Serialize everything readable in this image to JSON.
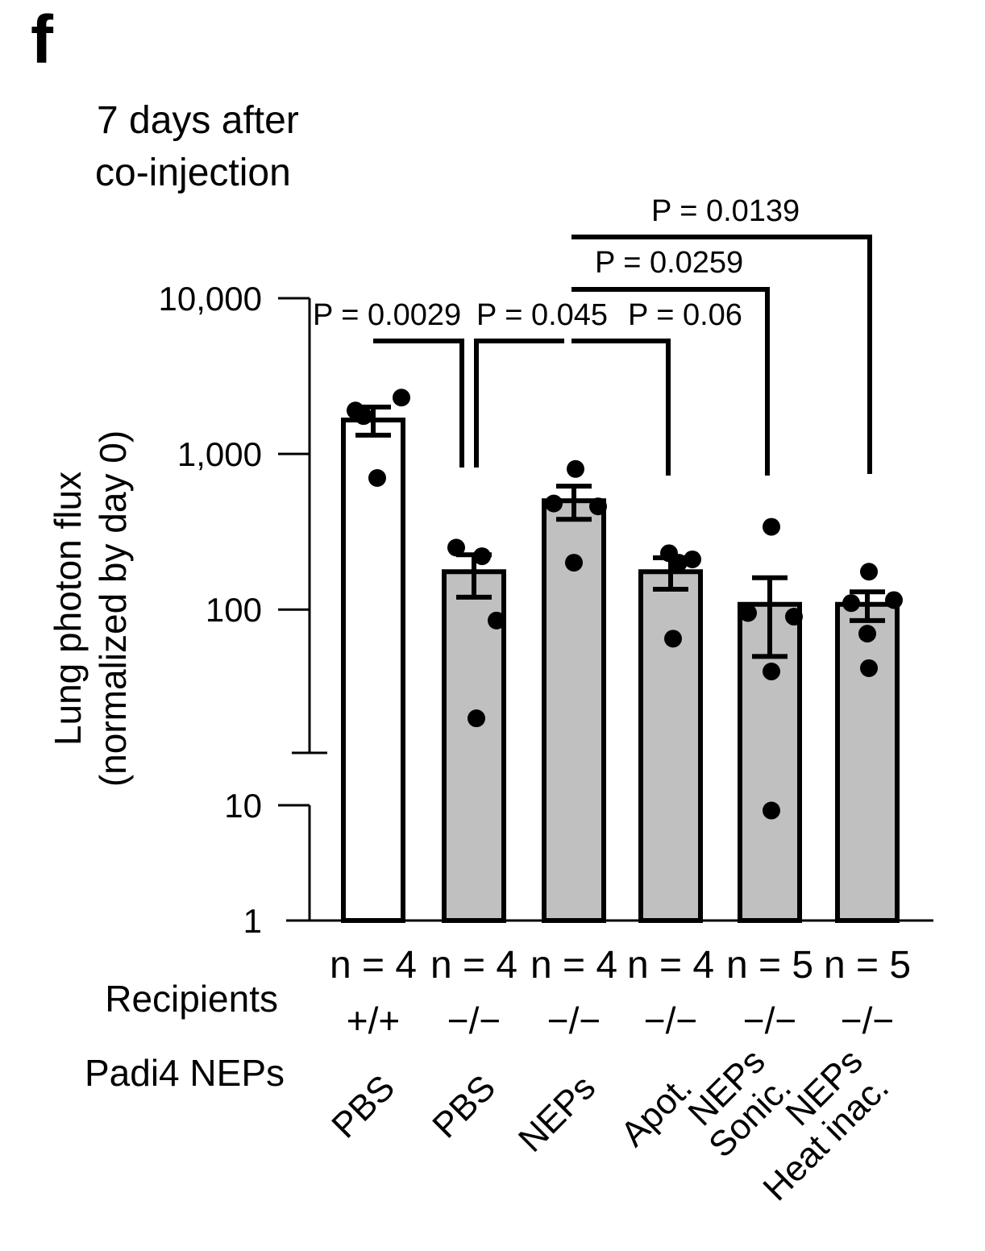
{
  "panel_letter": "f",
  "title_lines": [
    "7 days after",
    "co-injection"
  ],
  "row_labels": {
    "recipients": "Recipients",
    "neps": "Padi4 NEPs"
  },
  "chart_data": {
    "type": "bar",
    "ylabel_lines": [
      "Lung photon flux",
      "(normalized by day 0)"
    ],
    "xlabel": "",
    "y_scale": "log",
    "y_axis_break": true,
    "ylim": [
      1,
      10000
    ],
    "y_ticks": [
      {
        "value": 10000,
        "label": "10,000"
      },
      {
        "value": 1000,
        "label": "1,000"
      },
      {
        "value": 100,
        "label": "100"
      },
      {
        "value": 10,
        "label": "10"
      },
      {
        "value": 1,
        "label": "1"
      }
    ],
    "grid": false,
    "legend": "none",
    "colors": {
      "first_bar": "#ffffff",
      "other_bars": "#c0c0c0",
      "stroke": "#000000"
    },
    "groups": [
      {
        "n_label": "n = 4",
        "recipient": "+/+",
        "treatment_lines": [
          "PBS"
        ],
        "mean": 1650,
        "sem": [
          1320,
          2000
        ],
        "points": [
          1900,
          1750,
          2300,
          700
        ]
      },
      {
        "n_label": "n = 4",
        "recipient": "−/−",
        "treatment_lines": [
          "PBS"
        ],
        "mean": 175,
        "sem": [
          120,
          225
        ],
        "points": [
          250,
          220,
          85,
          20
        ]
      },
      {
        "n_label": "n = 4",
        "recipient": "−/−",
        "treatment_lines": [
          "NEPs"
        ],
        "mean": 500,
        "sem": [
          380,
          620
        ],
        "points": [
          800,
          480,
          460,
          200
        ]
      },
      {
        "n_label": "n = 4",
        "recipient": "−/−",
        "treatment_lines": [
          "Apot."
        ],
        "mean": 175,
        "sem": [
          135,
          215
        ],
        "points": [
          230,
          200,
          210,
          65
        ]
      },
      {
        "n_label": "n = 5",
        "recipient": "−/−",
        "treatment_lines": [
          "NEPs",
          "Sonic."
        ],
        "mean": 108,
        "sem": [
          50,
          160
        ],
        "points": [
          340,
          95,
          90,
          40,
          9
        ]
      },
      {
        "n_label": "n = 5",
        "recipient": "−/−",
        "treatment_lines": [
          "NEPs",
          "Heat inac."
        ],
        "mean": 108,
        "sem": [
          85,
          130
        ],
        "points": [
          175,
          110,
          115,
          70,
          42
        ]
      }
    ],
    "comparisons": [
      {
        "label": "P = 0.0029",
        "groups": [
          0,
          1
        ]
      },
      {
        "label": "P = 0.045",
        "groups": [
          1,
          2
        ]
      },
      {
        "label": "P = 0.06",
        "groups": [
          2,
          3
        ]
      },
      {
        "label": "P = 0.0259",
        "groups": [
          2,
          4
        ]
      },
      {
        "label": "P = 0.0139",
        "groups": [
          2,
          5
        ]
      }
    ]
  }
}
